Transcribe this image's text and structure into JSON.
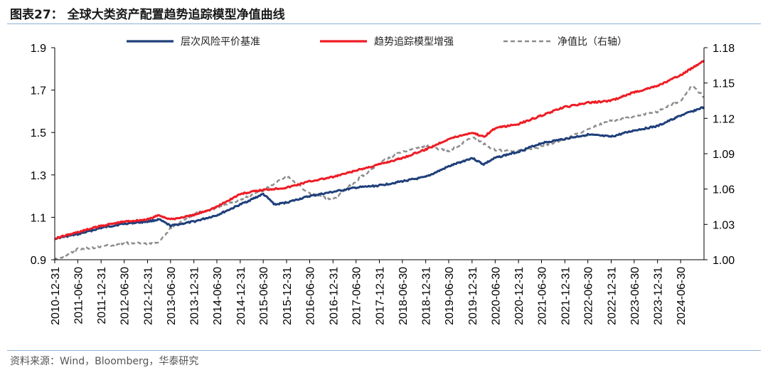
{
  "header": {
    "title": "图表27：  全球大类资产配置趋势追踪模型净值曲线"
  },
  "footer": {
    "source": "资料来源：Wind，Bloomberg，华泰研究"
  },
  "colors": {
    "baseline": "#1f3f7a",
    "enhanced": "#ee1c25",
    "ratio": "#8c8c8c",
    "rule": "#8fb3d9"
  },
  "chart_data": {
    "type": "line",
    "x_start": "2010-12-31",
    "x_end": "2024-12-31",
    "x_tick_labels": [
      "2010-12-31",
      "2011-06-30",
      "2011-12-31",
      "2012-06-30",
      "2012-12-31",
      "2013-06-30",
      "2013-12-31",
      "2014-06-30",
      "2014-12-31",
      "2015-06-30",
      "2015-12-31",
      "2016-06-30",
      "2016-12-31",
      "2017-06-30",
      "2017-12-31",
      "2018-06-30",
      "2018-12-31",
      "2019-06-30",
      "2019-12-31",
      "2020-06-30",
      "2020-12-31",
      "2021-06-30",
      "2021-12-31",
      "2022-06-30",
      "2022-12-31",
      "2023-06-30",
      "2023-12-31",
      "2024-06-30"
    ],
    "ylim_left": [
      0.9,
      1.9
    ],
    "yticks_left": [
      "0.9",
      "1.1",
      "1.3",
      "1.5",
      "1.7",
      "1.9"
    ],
    "ylim_right": [
      1.0,
      1.18
    ],
    "yticks_right": [
      "1.00",
      "1.03",
      "1.06",
      "1.09",
      "1.12",
      "1.15",
      "1.18"
    ],
    "legend_position": "top",
    "series": [
      {
        "name": "层次风险平价基准",
        "axis": "left",
        "style": "solid",
        "x": [
          "2010-12-31",
          "2011-06-30",
          "2011-12-31",
          "2012-06-30",
          "2012-12-31",
          "2013-03-31",
          "2013-06-30",
          "2013-12-31",
          "2014-06-30",
          "2014-12-31",
          "2015-06-30",
          "2015-09-30",
          "2015-12-31",
          "2016-06-30",
          "2016-12-31",
          "2017-06-30",
          "2017-12-31",
          "2018-06-30",
          "2018-12-31",
          "2019-06-30",
          "2019-12-31",
          "2020-03-31",
          "2020-06-30",
          "2020-12-31",
          "2021-06-30",
          "2021-12-31",
          "2022-06-30",
          "2022-12-31",
          "2023-06-30",
          "2023-12-31",
          "2024-06-30",
          "2024-12-31"
        ],
        "values": [
          1.0,
          1.02,
          1.05,
          1.07,
          1.08,
          1.09,
          1.06,
          1.08,
          1.11,
          1.16,
          1.21,
          1.16,
          1.17,
          1.2,
          1.22,
          1.24,
          1.25,
          1.27,
          1.29,
          1.34,
          1.38,
          1.35,
          1.38,
          1.41,
          1.45,
          1.47,
          1.49,
          1.48,
          1.51,
          1.53,
          1.58,
          1.62
        ]
      },
      {
        "name": "趋势追踪模型增强",
        "axis": "left",
        "style": "solid",
        "x": [
          "2010-12-31",
          "2011-06-30",
          "2011-12-31",
          "2012-06-30",
          "2012-12-31",
          "2013-03-31",
          "2013-06-30",
          "2013-12-31",
          "2014-06-30",
          "2014-12-31",
          "2015-06-30",
          "2015-12-31",
          "2016-06-30",
          "2016-12-31",
          "2017-06-30",
          "2017-12-31",
          "2018-06-30",
          "2018-12-31",
          "2019-06-30",
          "2019-12-31",
          "2020-03-31",
          "2020-06-30",
          "2020-12-31",
          "2021-06-30",
          "2021-12-31",
          "2022-06-30",
          "2022-12-31",
          "2023-06-30",
          "2023-12-31",
          "2024-06-30",
          "2024-12-31"
        ],
        "values": [
          1.0,
          1.03,
          1.06,
          1.08,
          1.09,
          1.11,
          1.09,
          1.11,
          1.15,
          1.21,
          1.23,
          1.24,
          1.27,
          1.29,
          1.32,
          1.35,
          1.38,
          1.42,
          1.47,
          1.5,
          1.48,
          1.52,
          1.54,
          1.58,
          1.62,
          1.64,
          1.65,
          1.69,
          1.72,
          1.77,
          1.84
        ]
      },
      {
        "name": "净值比（右轴）",
        "axis": "right",
        "style": "dashed",
        "x": [
          "2010-12-31",
          "2011-03-31",
          "2011-06-30",
          "2011-12-31",
          "2012-06-30",
          "2012-12-31",
          "2013-03-31",
          "2013-06-30",
          "2013-12-31",
          "2014-06-30",
          "2014-12-31",
          "2015-06-30",
          "2015-12-31",
          "2016-06-30",
          "2016-12-31",
          "2017-06-30",
          "2017-12-31",
          "2018-06-30",
          "2018-12-31",
          "2019-06-30",
          "2019-12-31",
          "2020-06-30",
          "2020-12-31",
          "2021-06-30",
          "2021-12-31",
          "2022-06-30",
          "2022-12-31",
          "2023-06-30",
          "2023-12-31",
          "2024-06-30",
          "2024-09-30",
          "2024-12-31"
        ],
        "values": [
          1.0,
          1.004,
          1.009,
          1.011,
          1.014,
          1.014,
          1.015,
          1.027,
          1.039,
          1.044,
          1.051,
          1.059,
          1.071,
          1.056,
          1.051,
          1.067,
          1.082,
          1.092,
          1.097,
          1.092,
          1.104,
          1.093,
          1.092,
          1.096,
          1.102,
          1.111,
          1.118,
          1.121,
          1.126,
          1.135,
          1.148,
          1.138
        ]
      }
    ]
  }
}
